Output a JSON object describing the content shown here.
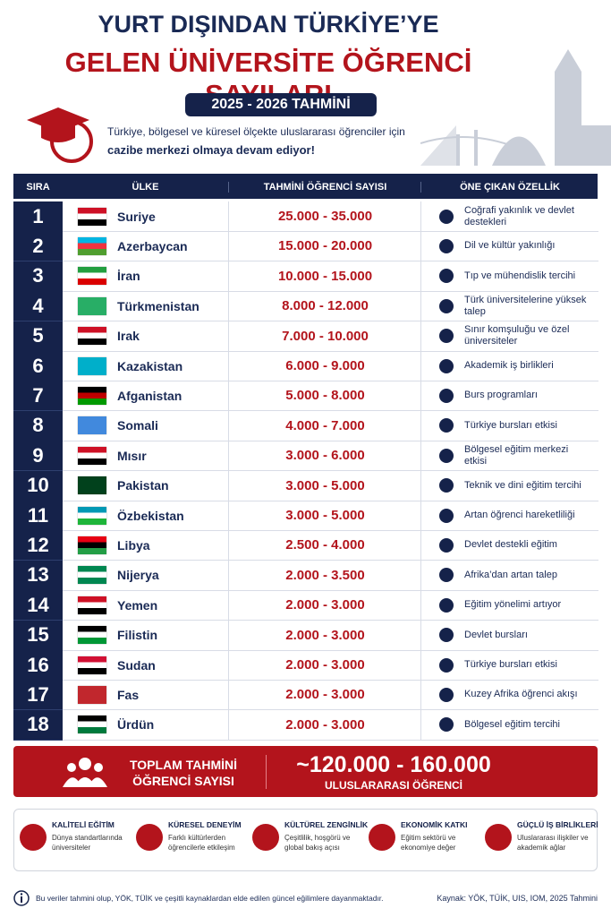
{
  "header": {
    "title_line1": "YURT DIŞINDAN TÜRKİYE’YE",
    "title_line2": "GELEN ÜNİVERSİTE ÖĞRENCİ SAYILARI",
    "badge": "2025 - 2026 TAHMİNİ",
    "subtitle_line1": "Türkiye, bölgesel ve küresel ölçekte uluslararası öğrenciler için",
    "subtitle_line2": "cazibe merkezi olmaya devam ediyor!"
  },
  "table": {
    "columns": [
      "SIRA",
      "ÜLKE",
      "TAHMİNİ ÖĞRENCİ SAYISI",
      "ÖNE ÇIKAN ÖZELLİK"
    ],
    "rows": [
      [
        "1",
        "Suriye",
        "25.000 - 35.000",
        "Coğrafi yakınlık ve devlet destekleri"
      ],
      [
        "2",
        "Azerbaycan",
        "15.000 - 20.000",
        "Dil ve kültür yakınlığı"
      ],
      [
        "3",
        "İran",
        "10.000 - 15.000",
        "Tıp ve mühendislik tercihi"
      ],
      [
        "4",
        "Türkmenistan",
        "8.000 - 12.000",
        "Türk üniversitelerine yüksek talep"
      ],
      [
        "5",
        "Irak",
        "7.000 - 10.000",
        "Sınır komşuluğu ve özel üniversiteler"
      ],
      [
        "6",
        "Kazakistan",
        "6.000 - 9.000",
        "Akademik iş birlikleri"
      ],
      [
        "7",
        "Afganistan",
        "5.000 - 8.000",
        "Burs programları"
      ],
      [
        "8",
        "Somali",
        "4.000 - 7.000",
        "Türkiye bursları etkisi"
      ],
      [
        "9",
        "Mısır",
        "3.000 - 6.000",
        "Bölgesel eğitim merkezi etkisi"
      ],
      [
        "10",
        "Pakistan",
        "3.000 - 5.000",
        "Teknik ve dini eğitim tercihi"
      ],
      [
        "11",
        "Özbekistan",
        "3.000 - 5.000",
        "Artan öğrenci hareketliliği"
      ],
      [
        "12",
        "Libya",
        "2.500 - 4.000",
        "Devlet destekli eğitim"
      ],
      [
        "13",
        "Nijerya",
        "2.000 - 3.500",
        "Afrika’dan artan talep"
      ],
      [
        "14",
        "Yemen",
        "2.000 - 3.000",
        "Eğitim yönelimi artıyor"
      ],
      [
        "15",
        "Filistin",
        "2.000 - 3.000",
        "Devlet bursları"
      ],
      [
        "16",
        "Sudan",
        "2.000 - 3.000",
        "Türkiye bursları etkisi"
      ],
      [
        "17",
        "Fas",
        "2.000 - 3.000",
        "Kuzey Afrika öğrenci akışı"
      ],
      [
        "18",
        "Ürdün",
        "2.000 - 3.000",
        "Bölgesel eğitim tercihi"
      ]
    ]
  },
  "total": {
    "label_lines": [
      "TOPLAM TAHMİNİ",
      "ÖĞRENCİ SAYISI"
    ],
    "value": "~120.000 - 160.000",
    "sub": "ULUSLARARASI ÖĞRENCİ"
  },
  "features": [
    {
      "title": "KALİTELİ EĞİTİM",
      "desc": "Dünya standartlarında üniversiteler"
    },
    {
      "title": "KÜRESEL DENEYİM",
      "desc": "Farklı kültürlerden öğrencilerle etkileşim"
    },
    {
      "title": "KÜLTÜREL ZENGİNLİK",
      "desc": "Çeşitlilik, hoşgörü ve global bakış açısı"
    },
    {
      "title": "EKONOMİK KATKI",
      "desc": "Eğitim sektörü ve ekonomiye değer"
    },
    {
      "title": "GÜÇLÜ İŞ BİRLİKLERİ",
      "desc": "Uluslararası ilişkiler ve akademik ağlar"
    }
  ],
  "footer": {
    "note": "Bu veriler tahmini olup, YÖK, TÜİK ve çeşitli kaynaklardan elde edilen güncel eğilimlere dayanmaktadır.",
    "source": "Kaynak: YÖK, TÜİK, UIS, IOM, 2025 Tahmini"
  }
}
